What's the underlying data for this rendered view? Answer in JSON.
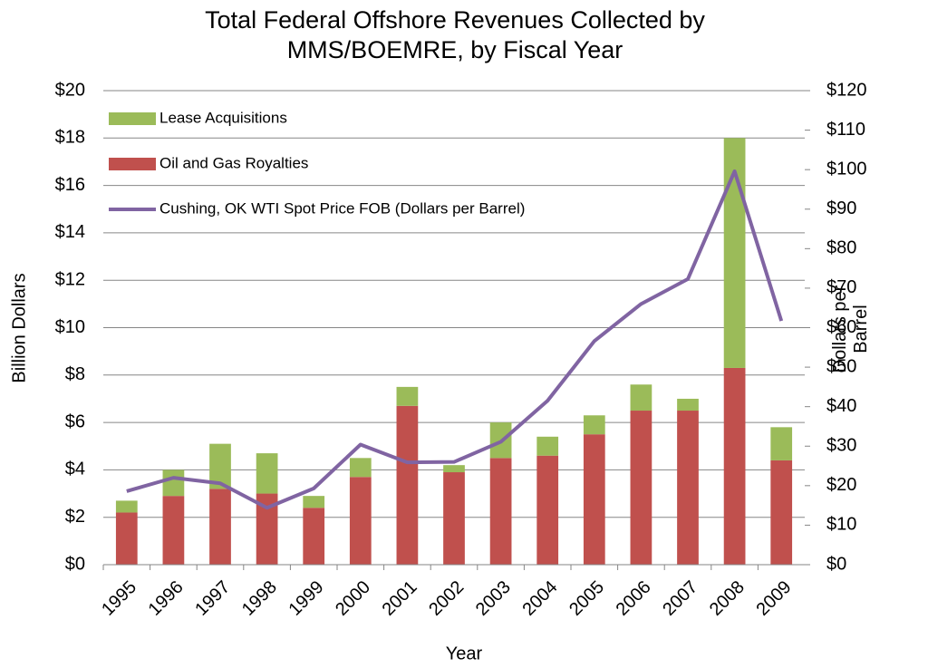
{
  "chart_data": {
    "type": "bar",
    "title": "Total Federal Offshore Revenues Collected by MMS/BOEMRE, by Fiscal Year",
    "x_label": "Year",
    "y_label": "Billion Dollars",
    "y2_label": "Dollars per Barrel",
    "categories": [
      "1995",
      "1996",
      "1997",
      "1998",
      "1999",
      "2000",
      "2001",
      "2002",
      "2003",
      "2004",
      "2005",
      "2006",
      "2007",
      "2008",
      "2009"
    ],
    "series": [
      {
        "name": "Oil and Gas Royalties",
        "color": "#c0504d",
        "type": "bar",
        "values": [
          2.2,
          2.9,
          3.2,
          3.0,
          2.4,
          3.7,
          6.7,
          3.9,
          4.5,
          4.6,
          5.5,
          6.5,
          6.5,
          8.3,
          4.4
        ]
      },
      {
        "name": "Lease Acquisitions",
        "color": "#9bbb59",
        "type": "bar",
        "values": [
          0.5,
          1.1,
          1.9,
          1.7,
          0.5,
          0.8,
          0.8,
          0.3,
          1.5,
          0.8,
          0.8,
          1.1,
          0.5,
          9.7,
          1.4
        ]
      },
      {
        "name": "Cushing, OK WTI Spot Price FOB (Dollars per Barrel)",
        "color": "#8064a2",
        "type": "line",
        "axis": "y2",
        "values": [
          18.6,
          22.0,
          20.6,
          14.4,
          19.3,
          30.4,
          25.9,
          26.0,
          31.1,
          41.5,
          56.6,
          66.0,
          72.3,
          99.6,
          61.7
        ]
      }
    ],
    "stacked": true,
    "ylim": [
      0,
      20
    ],
    "yticks": [
      {
        "value": 0,
        "label": "$0"
      },
      {
        "value": 2,
        "label": "$2"
      },
      {
        "value": 4,
        "label": "$4"
      },
      {
        "value": 6,
        "label": "$6"
      },
      {
        "value": 8,
        "label": "$8"
      },
      {
        "value": 10,
        "label": "$10"
      },
      {
        "value": 12,
        "label": "$12"
      },
      {
        "value": 14,
        "label": "$14"
      },
      {
        "value": 16,
        "label": "$16"
      },
      {
        "value": 18,
        "label": "$18"
      },
      {
        "value": 20,
        "label": "$20"
      }
    ],
    "y2lim": [
      0,
      120
    ],
    "y2ticks": [
      {
        "value": 0,
        "label": "$0"
      },
      {
        "value": 10,
        "label": "$10"
      },
      {
        "value": 20,
        "label": "$20"
      },
      {
        "value": 30,
        "label": "$30"
      },
      {
        "value": 40,
        "label": "$40"
      },
      {
        "value": 50,
        "label": "$50"
      },
      {
        "value": 60,
        "label": "$60"
      },
      {
        "value": 70,
        "label": "$70"
      },
      {
        "value": 80,
        "label": "$80"
      },
      {
        "value": 90,
        "label": "$90"
      },
      {
        "value": 100,
        "label": "$100"
      },
      {
        "value": 110,
        "label": "$110"
      },
      {
        "value": 120,
        "label": "$120"
      }
    ],
    "grid": true,
    "legend": "top-left"
  }
}
